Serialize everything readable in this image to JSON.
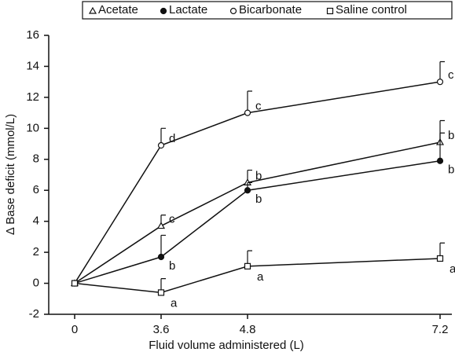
{
  "chart_data": {
    "type": "line",
    "xlabel": "Fluid volume administered (L)",
    "ylabel": "Δ Base deficit (mmol/L)",
    "categories": [
      "0",
      "3.6",
      "4.8",
      "7.2"
    ],
    "ylim": [
      -2,
      16
    ],
    "yticks": [
      -2,
      0,
      2,
      4,
      6,
      8,
      10,
      12,
      14,
      16
    ],
    "series": [
      {
        "name": "Acetate",
        "marker": "triangle",
        "color": "#111111",
        "values": [
          0,
          3.7,
          6.5,
          9.1
        ],
        "errors": [
          null,
          0.7,
          0.8,
          1.4
        ],
        "labels": [
          null,
          "c",
          "b",
          "b"
        ]
      },
      {
        "name": "Lactate",
        "marker": "filled-circle",
        "color": "#111111",
        "values": [
          0,
          1.7,
          6.0,
          7.9
        ],
        "errors": [
          null,
          1.4,
          0.5,
          1.8
        ],
        "labels": [
          null,
          "b",
          "b",
          "b"
        ]
      },
      {
        "name": "Bicarbonate",
        "marker": "open-circle",
        "color": "#111111",
        "values": [
          0,
          8.9,
          11.0,
          13.0
        ],
        "errors": [
          null,
          1.1,
          1.4,
          1.3
        ],
        "labels": [
          null,
          "d",
          "c",
          "c"
        ]
      },
      {
        "name": "Saline control",
        "marker": "square",
        "color": "#111111",
        "values": [
          0,
          -0.6,
          1.1,
          1.6
        ],
        "errors": [
          null,
          0.9,
          1.0,
          1.0
        ],
        "labels": [
          null,
          "a",
          "a",
          "a"
        ]
      }
    ]
  }
}
